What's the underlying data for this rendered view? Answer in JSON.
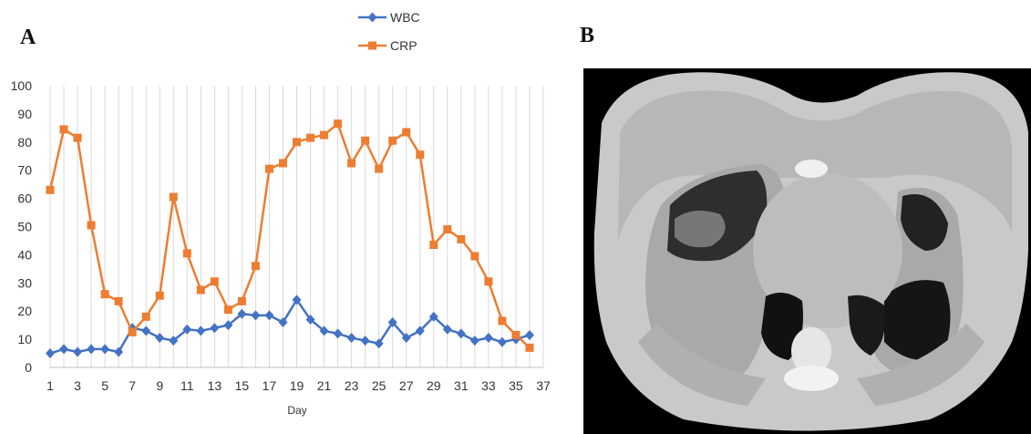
{
  "panels": {
    "a_label": "A",
    "b_label": "B"
  },
  "chart_data": {
    "type": "line",
    "xlabel": "Day",
    "ylabel": "",
    "ylim": [
      0,
      100
    ],
    "yticks": [
      0,
      10,
      20,
      30,
      40,
      50,
      60,
      70,
      80,
      90,
      100
    ],
    "xlim": [
      1,
      37
    ],
    "xtick_labels": [
      "1",
      "3",
      "5",
      "7",
      "9",
      "11",
      "13",
      "15",
      "17",
      "19",
      "21",
      "23",
      "25",
      "27",
      "29",
      "31",
      "33",
      "35",
      "37"
    ],
    "grid": "vertical",
    "legend": "top-center",
    "x": [
      1,
      2,
      3,
      4,
      5,
      6,
      7,
      8,
      9,
      10,
      11,
      12,
      13,
      14,
      15,
      16,
      17,
      18,
      19,
      20,
      21,
      22,
      23,
      24,
      25,
      26,
      27,
      28,
      29,
      30,
      31,
      32,
      33,
      34,
      35,
      36
    ],
    "series": [
      {
        "name": "WBC",
        "color": "#4472C4",
        "marker": "diamond",
        "values": [
          5,
          6.5,
          5.5,
          6.5,
          6.5,
          5.5,
          14,
          13,
          10.5,
          9.5,
          13.5,
          13,
          14,
          15,
          19,
          18.5,
          18.5,
          16,
          24,
          17,
          13,
          12,
          10.5,
          9.5,
          8.5,
          16,
          10.5,
          13,
          18,
          13.5,
          12,
          9.5,
          10.5,
          9,
          10,
          11.5
        ]
      },
      {
        "name": "CRP",
        "color": "#ED7D31",
        "marker": "square",
        "values": [
          63,
          84.5,
          81.5,
          50.5,
          26,
          23.5,
          12.5,
          18,
          25.5,
          60.5,
          40.5,
          27.5,
          30.5,
          20.5,
          23.5,
          36,
          70.5,
          72.5,
          80,
          81.5,
          82.5,
          86.5,
          72.5,
          80.5,
          70.5,
          80.5,
          83.5,
          75.5,
          43.5,
          49,
          45.5,
          39.5,
          30.5,
          16.5,
          11.5,
          7
        ]
      }
    ]
  },
  "image_b": {
    "description_icon": "ct-chest-scan"
  }
}
